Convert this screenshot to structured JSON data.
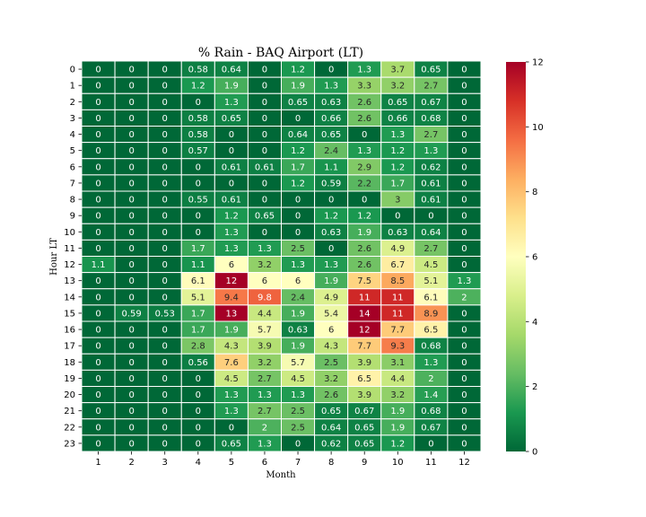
{
  "chart_data": {
    "type": "heatmap",
    "title": "% Rain - BAQ Airport (LT)",
    "xlabel": "Month",
    "ylabel": "Hour LT",
    "x_categories": [
      "1",
      "2",
      "3",
      "4",
      "5",
      "6",
      "7",
      "8",
      "9",
      "10",
      "11",
      "12"
    ],
    "y_categories": [
      "0",
      "1",
      "2",
      "3",
      "4",
      "5",
      "6",
      "7",
      "8",
      "9",
      "10",
      "11",
      "12",
      "13",
      "14",
      "15",
      "16",
      "17",
      "18",
      "19",
      "20",
      "21",
      "22",
      "23"
    ],
    "values": [
      [
        "0",
        "0",
        "0",
        "0.58",
        "0.64",
        "0",
        "1.2",
        "0",
        "1.3",
        "3.7",
        "0.65",
        "0"
      ],
      [
        "0",
        "0",
        "0",
        "1.2",
        "1.9",
        "0",
        "1.9",
        "1.3",
        "3.3",
        "3.2",
        "2.7",
        "0"
      ],
      [
        "0",
        "0",
        "0",
        "0",
        "1.3",
        "0",
        "0.65",
        "0.63",
        "2.6",
        "0.65",
        "0.67",
        "0"
      ],
      [
        "0",
        "0",
        "0",
        "0.58",
        "0.65",
        "0",
        "0",
        "0.66",
        "2.6",
        "0.66",
        "0.68",
        "0"
      ],
      [
        "0",
        "0",
        "0",
        "0.58",
        "0",
        "0",
        "0.64",
        "0.65",
        "0",
        "1.3",
        "2.7",
        "0"
      ],
      [
        "0",
        "0",
        "0",
        "0.57",
        "0",
        "0",
        "1.2",
        "2.4",
        "1.3",
        "1.2",
        "1.3",
        "0"
      ],
      [
        "0",
        "0",
        "0",
        "0",
        "0.61",
        "0.61",
        "1.7",
        "1.1",
        "2.9",
        "1.2",
        "0.62",
        "0"
      ],
      [
        "0",
        "0",
        "0",
        "0",
        "0",
        "0",
        "1.2",
        "0.59",
        "2.2",
        "1.7",
        "0.61",
        "0"
      ],
      [
        "0",
        "0",
        "0",
        "0.55",
        "0.61",
        "0",
        "0",
        "0",
        "0",
        "3",
        "0.61",
        "0"
      ],
      [
        "0",
        "0",
        "0",
        "0",
        "1.2",
        "0.65",
        "0",
        "1.2",
        "1.2",
        "0",
        "0",
        "0"
      ],
      [
        "0",
        "0",
        "0",
        "0",
        "1.3",
        "0",
        "0",
        "0.63",
        "1.9",
        "0.63",
        "0.64",
        "0"
      ],
      [
        "0",
        "0",
        "0",
        "1.7",
        "1.3",
        "1.3",
        "2.5",
        "0",
        "2.6",
        "4.9",
        "2.7",
        "0"
      ],
      [
        "1.1",
        "0",
        "0",
        "1.1",
        "6",
        "3.2",
        "1.3",
        "1.3",
        "2.6",
        "6.7",
        "4.5",
        "0"
      ],
      [
        "0",
        "0",
        "0",
        "6.1",
        "12",
        "6",
        "6",
        "1.9",
        "7.5",
        "8.5",
        "5.1",
        "1.3"
      ],
      [
        "0",
        "0",
        "0",
        "5.1",
        "9.4",
        "9.8",
        "2.4",
        "4.9",
        "11",
        "11",
        "6.1",
        "2"
      ],
      [
        "0",
        "0.59",
        "0.53",
        "1.7",
        "13",
        "4.4",
        "1.9",
        "5.4",
        "14",
        "11",
        "8.9",
        "0"
      ],
      [
        "0",
        "0",
        "0",
        "1.7",
        "1.9",
        "5.7",
        "0.63",
        "6",
        "12",
        "7.7",
        "6.5",
        "0"
      ],
      [
        "0",
        "0",
        "0",
        "2.8",
        "4.3",
        "3.9",
        "1.9",
        "4.3",
        "7.7",
        "9.3",
        "0.68",
        "0"
      ],
      [
        "0",
        "0",
        "0",
        "0.56",
        "7.6",
        "3.2",
        "5.7",
        "2.5",
        "3.9",
        "3.1",
        "1.3",
        "0"
      ],
      [
        "0",
        "0",
        "0",
        "0",
        "4.5",
        "2.7",
        "4.5",
        "3.2",
        "6.5",
        "4.4",
        "2",
        "0"
      ],
      [
        "0",
        "0",
        "0",
        "0",
        "1.3",
        "1.3",
        "1.3",
        "2.6",
        "3.9",
        "3.2",
        "1.4",
        "0"
      ],
      [
        "0",
        "0",
        "0",
        "0",
        "1.3",
        "2.7",
        "2.5",
        "0.65",
        "0.67",
        "1.9",
        "0.68",
        "0"
      ],
      [
        "0",
        "0",
        "0",
        "0",
        "0",
        "2",
        "2.5",
        "0.64",
        "0.65",
        "1.9",
        "0.67",
        "0"
      ],
      [
        "0",
        "0",
        "0",
        "0",
        "0.65",
        "1.3",
        "0",
        "0.62",
        "0.65",
        "1.2",
        "0",
        "0"
      ]
    ],
    "colormap": "RdYlGn_r",
    "vmin": 0,
    "vmax": 12,
    "colorbar_ticks": [
      "0",
      "2",
      "4",
      "6",
      "8",
      "10",
      "12"
    ],
    "grid": false,
    "cell_border_color": "#ffffff"
  }
}
